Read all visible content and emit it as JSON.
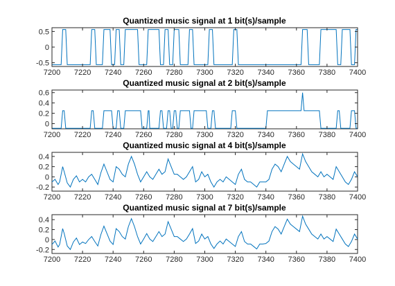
{
  "chart_data": [
    {
      "type": "line",
      "title": "Quantized music signal at 1 bit(s)/sample",
      "xlim": [
        7200,
        7400
      ],
      "ylim": [
        -0.62,
        0.62
      ],
      "xticks": [
        7200,
        7220,
        7240,
        7260,
        7280,
        7300,
        7320,
        7340,
        7360,
        7380,
        7400
      ],
      "yticks": [
        -0.5,
        0,
        0.5
      ],
      "yticklabels": [
        "-0.5",
        "0",
        "0.5"
      ],
      "levels": [
        -0.5625,
        0.5625
      ],
      "grid": false,
      "series": [
        {
          "color": "#0072bd",
          "x": [
            7200,
            7206,
            7207,
            7209,
            7210,
            7225,
            7226,
            7228,
            7229,
            7233,
            7234,
            7238,
            7239,
            7241,
            7242,
            7244,
            7245,
            7247,
            7248,
            7256,
            7257,
            7262,
            7263,
            7270,
            7271,
            7273,
            7274,
            7276,
            7277,
            7279,
            7280,
            7283,
            7284,
            7289,
            7290,
            7292,
            7293,
            7302,
            7303,
            7305,
            7306,
            7318,
            7319,
            7321,
            7322,
            7363,
            7364,
            7367,
            7368,
            7375,
            7376,
            7386,
            7387,
            7389,
            7390,
            7395,
            7396,
            7398,
            7399,
            7400
          ],
          "y": [
            -0.5625,
            -0.5625,
            0.5625,
            0.5625,
            -0.5625,
            -0.5625,
            0.5625,
            0.5625,
            -0.5625,
            -0.5625,
            0.5625,
            0.5625,
            -0.5625,
            -0.5625,
            0.5625,
            0.5625,
            -0.5625,
            -0.5625,
            0.5625,
            0.5625,
            -0.5625,
            -0.5625,
            0.5625,
            0.5625,
            -0.5625,
            -0.5625,
            0.5625,
            0.5625,
            -0.5625,
            -0.5625,
            0.5625,
            0.5625,
            -0.5625,
            -0.5625,
            0.5625,
            0.5625,
            -0.5625,
            -0.5625,
            0.5625,
            0.5625,
            -0.5625,
            -0.5625,
            0.5625,
            0.5625,
            -0.5625,
            -0.5625,
            0.5625,
            0.5625,
            -0.5625,
            -0.5625,
            0.5625,
            0.5625,
            -0.5625,
            -0.5625,
            0.5625,
            0.5625,
            -0.5625,
            -0.5625,
            0.5625,
            0.5625
          ]
        }
      ]
    },
    {
      "type": "line",
      "title": "Quantized music signal at 2 bit(s)/sample",
      "xlim": [
        7200,
        7400
      ],
      "ylim": [
        -0.1,
        0.65
      ],
      "xticks": [
        7200,
        7220,
        7240,
        7260,
        7280,
        7300,
        7320,
        7340,
        7360,
        7380,
        7400
      ],
      "yticks": [
        0,
        0.2,
        0.4,
        0.6
      ],
      "yticklabels": [
        "0",
        "0.2",
        "0.4",
        "0.6"
      ],
      "levels": [
        -0.09,
        0.25,
        0.6
      ],
      "grid": false,
      "series": [
        {
          "color": "#0072bd",
          "x": [
            7200,
            7206,
            7207,
            7208,
            7209,
            7225,
            7226,
            7227,
            7228,
            7233,
            7234,
            7239,
            7240,
            7242,
            7243,
            7244,
            7245,
            7247,
            7248,
            7258,
            7259,
            7262,
            7263,
            7263.5,
            7264,
            7270,
            7271,
            7272,
            7273,
            7275,
            7276,
            7277,
            7278,
            7279,
            7280,
            7281,
            7282,
            7283,
            7284,
            7290,
            7291,
            7292,
            7293,
            7301,
            7302,
            7304,
            7305,
            7306,
            7307,
            7317,
            7318,
            7320,
            7321,
            7340,
            7341,
            7363,
            7364,
            7365,
            7366,
            7375,
            7376,
            7386,
            7387,
            7388,
            7389,
            7395,
            7396,
            7398,
            7399,
            7400
          ],
          "y": [
            -0.09,
            -0.09,
            0.25,
            0.25,
            -0.09,
            -0.09,
            0.25,
            0.25,
            -0.09,
            -0.09,
            0.25,
            0.25,
            -0.09,
            -0.09,
            0.25,
            0.25,
            -0.09,
            -0.09,
            0.25,
            0.25,
            -0.09,
            -0.09,
            0.25,
            0.25,
            -0.09,
            -0.09,
            0.25,
            0.25,
            -0.09,
            -0.09,
            0.25,
            0.25,
            -0.09,
            -0.09,
            0.25,
            0.25,
            -0.09,
            -0.09,
            0.25,
            0.25,
            -0.09,
            -0.09,
            0.25,
            0.25,
            -0.09,
            -0.09,
            0.25,
            0.25,
            -0.09,
            -0.09,
            0.25,
            0.25,
            -0.09,
            -0.09,
            0.25,
            0.25,
            0.6,
            0.25,
            0.25,
            0.25,
            -0.09,
            -0.09,
            0.25,
            0.25,
            -0.09,
            -0.09,
            0.25,
            0.25,
            -0.09,
            -0.09
          ]
        }
      ]
    },
    {
      "type": "line",
      "title": "Quantized music signal at 4 bit(s)/sample",
      "xlim": [
        7200,
        7400
      ],
      "ylim": [
        -0.28,
        0.48
      ],
      "xticks": [
        7200,
        7220,
        7240,
        7260,
        7280,
        7300,
        7320,
        7340,
        7360,
        7380,
        7400
      ],
      "yticks": [
        -0.2,
        0,
        0.2,
        0.4
      ],
      "yticklabels": [
        "-0.2",
        "0",
        "0.2",
        "0.4"
      ],
      "grid": false,
      "series": [
        {
          "color": "#0072bd",
          "x": [
            7200,
            7202,
            7204,
            7205,
            7207,
            7208,
            7210,
            7212,
            7214,
            7216,
            7218,
            7220,
            7222,
            7224,
            7226,
            7228,
            7230,
            7232,
            7234,
            7236,
            7238,
            7240,
            7242,
            7244,
            7246,
            7248,
            7250,
            7252,
            7254,
            7256,
            7258,
            7260,
            7262,
            7264,
            7266,
            7268,
            7270,
            7272,
            7274,
            7276,
            7278,
            7280,
            7282,
            7284,
            7286,
            7288,
            7290,
            7292,
            7294,
            7296,
            7298,
            7300,
            7302,
            7304,
            7306,
            7308,
            7310,
            7312,
            7314,
            7316,
            7318,
            7320,
            7322,
            7324,
            7326,
            7328,
            7330,
            7332,
            7334,
            7336,
            7338,
            7340,
            7342,
            7344,
            7346,
            7348,
            7350,
            7352,
            7354,
            7356,
            7358,
            7360,
            7362,
            7364,
            7366,
            7368,
            7370,
            7372,
            7374,
            7376,
            7378,
            7380,
            7382,
            7384,
            7386,
            7388,
            7390,
            7392,
            7394,
            7396,
            7398,
            7400
          ],
          "y": [
            -0.1,
            -0.05,
            -0.15,
            -0.1,
            0.2,
            0.1,
            -0.12,
            -0.2,
            -0.05,
            0.02,
            -0.1,
            -0.05,
            -0.1,
            0.0,
            0.05,
            -0.05,
            -0.15,
            0.08,
            0.25,
            0.1,
            -0.05,
            -0.1,
            0.2,
            0.15,
            0.05,
            0.0,
            0.25,
            0.4,
            0.25,
            0.05,
            -0.1,
            0.0,
            0.1,
            0.0,
            -0.05,
            0.05,
            0.15,
            0.05,
            0.1,
            0.35,
            0.2,
            0.05,
            0.05,
            0.0,
            -0.05,
            0.0,
            0.1,
            0.2,
            -0.1,
            -0.05,
            0.1,
            0.0,
            0.05,
            -0.1,
            -0.2,
            -0.1,
            -0.05,
            -0.1,
            0.0,
            -0.05,
            -0.1,
            -0.15,
            0.05,
            0.15,
            -0.05,
            -0.1,
            -0.1,
            -0.15,
            -0.2,
            -0.1,
            -0.1,
            -0.1,
            -0.05,
            0.15,
            0.25,
            0.2,
            0.1,
            0.25,
            0.4,
            0.3,
            0.25,
            0.2,
            0.15,
            0.45,
            0.3,
            0.2,
            0.1,
            0.05,
            0.0,
            0.1,
            0.0,
            0.05,
            0.0,
            -0.05,
            0.2,
            0.1,
            0.0,
            -0.1,
            -0.15,
            -0.05,
            0.1,
            0.0
          ]
        }
      ]
    },
    {
      "type": "line",
      "title": "Quantized music signal at 7 bit(s)/sample",
      "xlim": [
        7200,
        7400
      ],
      "ylim": [
        -0.28,
        0.5
      ],
      "xticks": [
        7200,
        7220,
        7240,
        7260,
        7280,
        7300,
        7320,
        7340,
        7360,
        7380,
        7400
      ],
      "yticks": [
        -0.2,
        0,
        0.2,
        0.4
      ],
      "yticklabels": [
        "-0.2",
        "0",
        "0.2",
        "0.4"
      ],
      "grid": false,
      "series": [
        {
          "color": "#0072bd",
          "x": [
            7200,
            7202,
            7204,
            7205,
            7207,
            7208,
            7210,
            7212,
            7214,
            7216,
            7218,
            7220,
            7222,
            7224,
            7226,
            7228,
            7230,
            7232,
            7234,
            7236,
            7238,
            7240,
            7242,
            7244,
            7246,
            7248,
            7250,
            7252,
            7254,
            7256,
            7258,
            7260,
            7262,
            7264,
            7266,
            7268,
            7270,
            7272,
            7274,
            7276,
            7278,
            7280,
            7282,
            7284,
            7286,
            7288,
            7290,
            7292,
            7294,
            7296,
            7298,
            7300,
            7302,
            7304,
            7306,
            7308,
            7310,
            7312,
            7314,
            7316,
            7318,
            7320,
            7322,
            7324,
            7326,
            7328,
            7330,
            7332,
            7334,
            7336,
            7338,
            7340,
            7342,
            7344,
            7346,
            7348,
            7350,
            7352,
            7354,
            7356,
            7358,
            7360,
            7362,
            7364,
            7366,
            7368,
            7370,
            7372,
            7374,
            7376,
            7378,
            7380,
            7382,
            7384,
            7386,
            7388,
            7390,
            7392,
            7394,
            7396,
            7398,
            7400
          ],
          "y": [
            -0.1,
            -0.03,
            -0.15,
            -0.1,
            0.22,
            0.12,
            -0.13,
            -0.2,
            -0.05,
            0.03,
            -0.1,
            -0.05,
            -0.08,
            0.0,
            0.06,
            -0.04,
            -0.13,
            0.1,
            0.27,
            0.12,
            -0.03,
            -0.1,
            0.22,
            0.16,
            0.06,
            0.01,
            0.26,
            0.42,
            0.26,
            0.06,
            -0.09,
            0.01,
            0.12,
            0.01,
            -0.04,
            0.06,
            0.16,
            0.06,
            0.11,
            0.36,
            0.21,
            0.06,
            0.06,
            0.01,
            -0.04,
            0.01,
            0.11,
            0.22,
            -0.08,
            -0.03,
            0.11,
            0.01,
            0.06,
            -0.09,
            -0.18,
            -0.09,
            -0.03,
            -0.09,
            0.01,
            -0.04,
            -0.09,
            -0.14,
            0.06,
            0.16,
            -0.04,
            -0.09,
            -0.09,
            -0.14,
            -0.19,
            -0.09,
            -0.09,
            -0.08,
            -0.03,
            0.16,
            0.26,
            0.21,
            0.11,
            0.26,
            0.41,
            0.31,
            0.26,
            0.21,
            0.16,
            0.47,
            0.31,
            0.21,
            0.11,
            0.06,
            0.01,
            0.11,
            0.01,
            0.06,
            0.01,
            -0.04,
            0.21,
            0.11,
            0.01,
            -0.09,
            -0.14,
            -0.04,
            0.11,
            0.01
          ]
        }
      ]
    }
  ]
}
